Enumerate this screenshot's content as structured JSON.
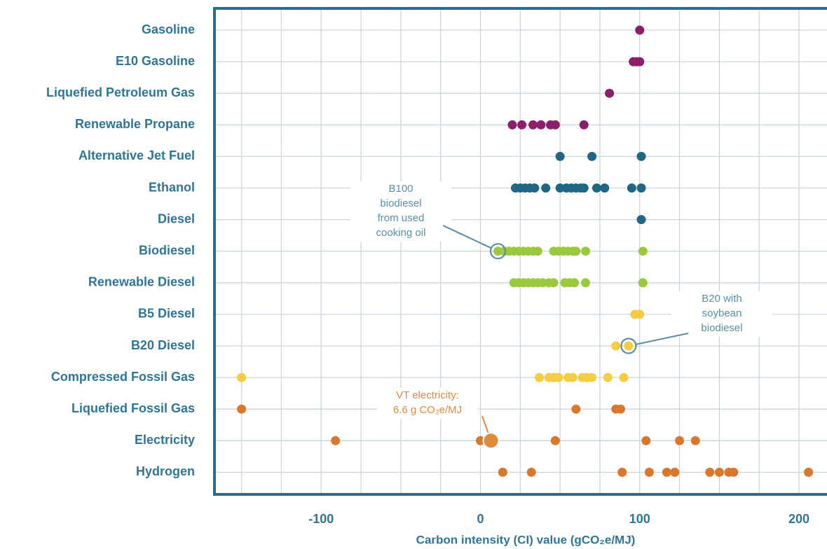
{
  "chart_data": {
    "type": "dot",
    "x_label": "Carbon intensity (CI) value (gCO₂e/MJ)",
    "categories": [
      "Gasoline",
      "E10 Gasoline",
      "Liquefied Petroleum Gas",
      "Renewable Propane",
      "Alternative Jet Fuel",
      "Ethanol",
      "Diesel",
      "Biodiesel",
      "Renewable Diesel",
      "B5 Diesel",
      "B20 Diesel",
      "Compressed Fossil Gas",
      "Liquefied Fossil Gas",
      "Electricity",
      "Hydrogen"
    ],
    "colors": [
      "#8b1f6b",
      "#8b1f6b",
      "#8b1f6b",
      "#8b1f6b",
      "#1f6784",
      "#1f6784",
      "#1f6784",
      "#9bc93c",
      "#9bc93c",
      "#f5cd45",
      "#f5cd45",
      "#f5cd45",
      "#d9772a",
      "#d9772a",
      "#d9772a"
    ],
    "values": [
      [
        100
      ],
      [
        96,
        98,
        100
      ],
      [
        81
      ],
      [
        20,
        26,
        33,
        38,
        44,
        47,
        65
      ],
      [
        50,
        70,
        101
      ],
      [
        22,
        25,
        28,
        31,
        34,
        41,
        50,
        54,
        57,
        60,
        63,
        65,
        73,
        78,
        95,
        101
      ],
      [
        101
      ],
      [
        11,
        15,
        18,
        21,
        24,
        27,
        30,
        33,
        36,
        46,
        49,
        52,
        55,
        58,
        60,
        66,
        102
      ],
      [
        21,
        24,
        27,
        30,
        33,
        36,
        39,
        43,
        46,
        53,
        56,
        59,
        66,
        102
      ],
      [
        97,
        100
      ],
      [
        85,
        93
      ],
      [
        -150,
        37,
        43,
        46,
        49,
        55,
        58,
        64,
        67,
        70,
        80,
        90
      ],
      [
        -150,
        60,
        85,
        88
      ],
      [
        -91,
        0,
        6.6,
        47,
        104,
        125,
        135
      ],
      [
        14,
        32,
        89,
        106,
        117,
        122,
        144,
        150,
        156,
        159,
        206
      ]
    ],
    "xlim": [
      -167,
      217.6
    ],
    "xticks": [
      -100,
      0,
      100,
      200
    ],
    "xgrid": [
      -150,
      -125,
      -100,
      -75,
      -50,
      -25,
      0,
      25,
      50,
      75,
      100,
      125,
      150,
      175,
      200
    ],
    "annotations": [
      {
        "lines": [
          "B100",
          "biodiesel",
          "from used",
          "cooking oil"
        ],
        "row": 7,
        "point": 0,
        "color": "#5a8ea3"
      },
      {
        "lines": [
          "B20 with",
          "soybean",
          "biodiesel"
        ],
        "row": 10,
        "point": 1,
        "color": "#5a8ea3"
      },
      {
        "lines": [
          "VT electricity:",
          "6.6 g CO₂e/MJ"
        ],
        "row": 13,
        "point": 2,
        "color": "#e08a3c"
      }
    ]
  }
}
